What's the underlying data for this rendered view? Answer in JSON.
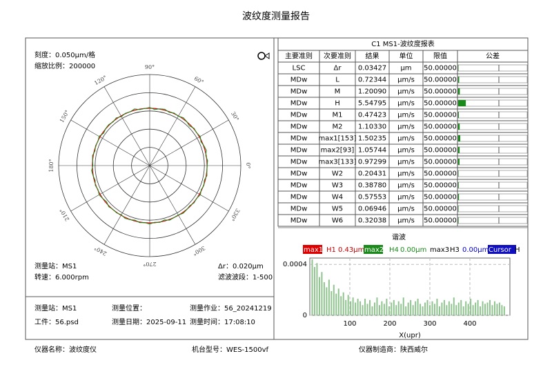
{
  "title": "波纹度测量报告",
  "left": {
    "scale": "刻度：0.050μm/格",
    "zoom": "缩放比例：200000",
    "station": "测量站：MS1",
    "delta_r": "Δr：0.020μm",
    "speed": "转速：6.000rpm",
    "filter": "滤波波段：1-500"
  },
  "polar": {
    "type": "polar",
    "angle_labels": [
      {
        "value": 90,
        "label": "90°"
      },
      {
        "value": 60,
        "label": "60°"
      },
      {
        "value": 30,
        "label": "30°"
      },
      {
        "value": 0,
        "label": "0°"
      },
      {
        "value": 330,
        "label": "330°"
      },
      {
        "value": 300,
        "label": "300°"
      },
      {
        "value": 270,
        "label": "270°"
      },
      {
        "value": 240,
        "label": "240°"
      },
      {
        "value": 210,
        "label": "210°"
      },
      {
        "value": 180,
        "label": "180°"
      },
      {
        "value": 150,
        "label": "150°"
      },
      {
        "value": 120,
        "label": "120°"
      }
    ],
    "rlim": [
      0,
      5
    ],
    "rticks": [
      1,
      2,
      3,
      4,
      5
    ],
    "reference": 3.15,
    "reference_color": "#d40000",
    "profile_color": "#1a8a1a",
    "profile": [
      3.15,
      3.19,
      3.12,
      3.22,
      3.17,
      3.1,
      3.2,
      3.14,
      3.18,
      3.08,
      3.16,
      3.21,
      3.13,
      3.18,
      3.11,
      3.2,
      3.16,
      3.09,
      3.19,
      3.15,
      3.12,
      3.22,
      3.14,
      3.17,
      3.1,
      3.2,
      3.13,
      3.18,
      3.16,
      3.09,
      3.21,
      3.14,
      3.17,
      3.11,
      3.19,
      3.15,
      3.12,
      3.2,
      3.16,
      3.1,
      3.18,
      3.13,
      3.21,
      3.15,
      3.09,
      3.19,
      3.14,
      3.17,
      3.12,
      3.2,
      3.16,
      3.1,
      3.18,
      3.14,
      3.21,
      3.12,
      3.17,
      3.09,
      3.19,
      3.15,
      3.13,
      3.2,
      3.16,
      3.11,
      3.18,
      3.14,
      3.21,
      3.12,
      3.17,
      3.1,
      3.19,
      3.15
    ]
  },
  "table": {
    "title": "C1 MS1-波纹度报表",
    "headers": [
      "主要准则",
      "次要准则",
      "结果",
      "单位",
      "限值",
      "公差"
    ],
    "rows": [
      [
        "LSC",
        "Δr",
        "0.03427",
        "μm",
        "50.00000"
      ],
      [
        "MDw",
        "L",
        "0.72344",
        "μm/s",
        "50.00000"
      ],
      [
        "MDw",
        "M",
        "1.20090",
        "μm/s",
        "50.00000"
      ],
      [
        "MDw",
        "H",
        "5.54795",
        "μm/s",
        "50.00000"
      ],
      [
        "MDw",
        "M1",
        "0.47423",
        "μm/s",
        "50.00000"
      ],
      [
        "MDw",
        "M2",
        "1.10330",
        "μm/s",
        "50.00000"
      ],
      [
        "MDw",
        "max1[153]",
        "1.50235",
        "μm/s",
        "50.00000"
      ],
      [
        "MDw",
        "max2[93]",
        "1.05744",
        "μm/s",
        "50.00000"
      ],
      [
        "MDw",
        "max3[133]",
        "0.97299",
        "μm/s",
        "50.00000"
      ],
      [
        "MDw",
        "W2",
        "0.20431",
        "μm/s",
        "50.00000"
      ],
      [
        "MDw",
        "W3",
        "0.38780",
        "μm/s",
        "50.00000"
      ],
      [
        "MDw",
        "W4",
        "0.57553",
        "μm/s",
        "50.00000"
      ],
      [
        "MDw",
        "W5",
        "0.06946",
        "μm/s",
        "50.00000"
      ],
      [
        "MDw",
        "W6",
        "0.32038",
        "μm/s",
        "50.00000"
      ]
    ],
    "bar_color": "#1a8a1a"
  },
  "spectrum": {
    "type": "bar",
    "title": "谐波",
    "xlabel": "X(upr)",
    "legend": [
      {
        "text": "max1",
        "bg": "#e00000",
        "color": "#ffffff"
      },
      {
        "text": "H1",
        "color": "#c00000"
      },
      {
        "text": "0.43μm",
        "color": "#c00000"
      },
      {
        "text": "max2",
        "bg": "#1a8a1a",
        "color": "#ffffff"
      },
      {
        "text": "H4",
        "color": "#1a8a1a"
      },
      {
        "text": "0.00μm",
        "color": "#1a8a1a"
      },
      {
        "text": "max3",
        "color": "#000000"
      },
      {
        "text": "H3",
        "color": "#000000"
      },
      {
        "text": "0.00μm",
        "color": "#0000cc"
      },
      {
        "text": "Cursor",
        "bg": "#1010c0",
        "color": "#ffffff"
      },
      {
        "text": "H",
        "color": "#000000"
      }
    ],
    "xlim": [
      0,
      500
    ],
    "ylim": [
      0,
      0.00045
    ],
    "xticks": [
      100,
      200,
      300,
      400
    ],
    "yticks": [
      0,
      0.0004
    ],
    "grid": true,
    "color": "#8fc48f",
    "x": [
      6,
      12,
      18,
      24,
      30,
      36,
      42,
      48,
      54,
      60,
      66,
      72,
      78,
      84,
      90,
      96,
      102,
      108,
      114,
      120,
      126,
      132,
      138,
      144,
      150,
      156,
      162,
      168,
      174,
      180,
      186,
      192,
      198,
      204,
      210,
      216,
      222,
      228,
      234,
      240,
      246,
      252,
      258,
      264,
      270,
      276,
      282,
      288,
      294,
      300,
      306,
      312,
      318,
      324,
      330,
      336,
      342,
      348,
      354,
      360,
      366,
      372,
      378,
      384,
      390,
      396,
      402,
      408,
      414,
      420,
      426,
      432,
      438,
      444,
      450,
      456,
      462,
      468,
      474,
      480,
      486
    ],
    "values": [
      0.00044,
      0.00038,
      0.00041,
      0.0003,
      0.00034,
      0.00026,
      0.00022,
      0.00028,
      0.00019,
      0.00024,
      0.00017,
      0.00021,
      0.00015,
      0.00018,
      0.00012,
      0.00016,
      0.00011,
      0.00014,
      0.0001,
      0.00013,
      0.00011,
      8e-05,
      0.00013,
      9e-05,
      0.00012,
      7e-05,
      0.0001,
      0.00014,
      8e-05,
      0.00011,
      9e-05,
      0.00013,
      7e-05,
      0.0001,
      0.00012,
      8e-05,
      0.00011,
      9e-05,
      0.00014,
      7e-05,
      0.0001,
      0.00012,
      8e-05,
      0.00011,
      0.00013,
      9e-05,
      7e-05,
      0.0001,
      0.00012,
      8e-05,
      0.00011,
      9e-05,
      0.00013,
      7e-05,
      0.0001,
      0.00012,
      8e-05,
      0.00011,
      9e-05,
      0.00014,
      8e-05,
      0.0001,
      0.00012,
      7e-05,
      0.00011,
      9e-05,
      0.00013,
      8e-05,
      0.0001,
      0.00012,
      7e-05,
      0.00011,
      9e-05,
      0.0001,
      0.00012,
      8e-05,
      0.00011,
      9e-05,
      0.0001,
      8e-05,
      7e-05
    ]
  },
  "info": {
    "station": "测量站：MS1",
    "position": "测量位置：",
    "job": "测量作业：56_20241219",
    "workpiece": "工件：56.psd",
    "date": "测量日期：2025-09-11",
    "time": "测量时间：17:08:10"
  },
  "footer": {
    "name": "仪器名称：波纹度仪",
    "model": "机台型号：WES-1500vf",
    "maker": "仪器制造商：陕西威尔"
  }
}
